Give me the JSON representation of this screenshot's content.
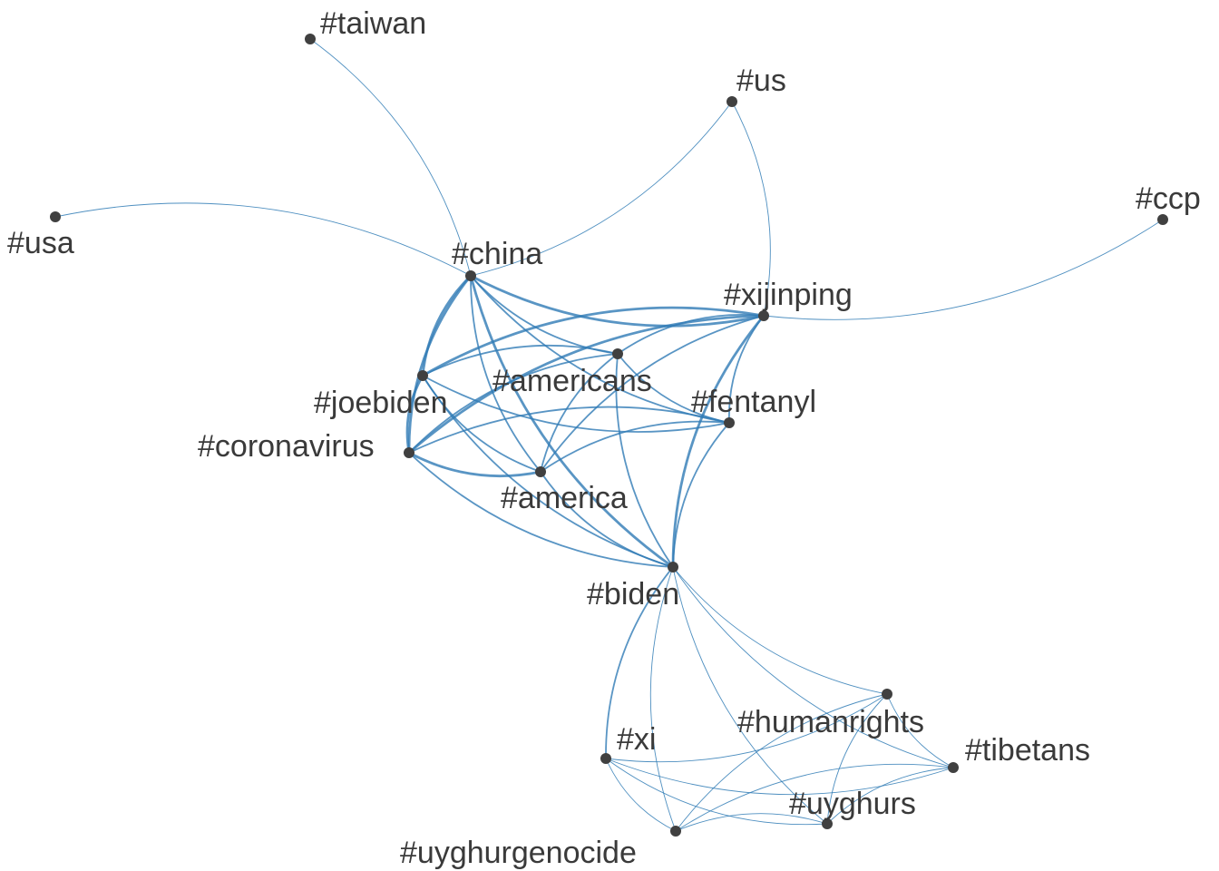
{
  "graph": {
    "type": "network",
    "edge_color": "#2f7bb5",
    "node_color": "#404040",
    "label_color": "#3a3a3a",
    "nodes": [
      {
        "id": "taiwan",
        "label": "#taiwan"
      },
      {
        "id": "us",
        "label": "#us"
      },
      {
        "id": "usa",
        "label": "#usa"
      },
      {
        "id": "ccp",
        "label": "#ccp"
      },
      {
        "id": "china",
        "label": "#china"
      },
      {
        "id": "xijinping",
        "label": "#xijinping"
      },
      {
        "id": "americans",
        "label": "#americans"
      },
      {
        "id": "joebiden",
        "label": "#joebiden"
      },
      {
        "id": "fentanyl",
        "label": "#fentanyl"
      },
      {
        "id": "coronavirus",
        "label": "#coronavirus"
      },
      {
        "id": "america",
        "label": "#america"
      },
      {
        "id": "biden",
        "label": "#biden"
      },
      {
        "id": "humanrights",
        "label": "#humanrights"
      },
      {
        "id": "xi",
        "label": "#xi"
      },
      {
        "id": "tibetans",
        "label": "#tibetans"
      },
      {
        "id": "uyghurs",
        "label": "#uyghurs"
      },
      {
        "id": "uyghurgenocide",
        "label": "#uyghurgenocide"
      }
    ],
    "edges": [
      {
        "source": "china",
        "target": "taiwan",
        "weight": 1
      },
      {
        "source": "china",
        "target": "usa",
        "weight": 1
      },
      {
        "source": "china",
        "target": "us",
        "weight": 1
      },
      {
        "source": "xijinping",
        "target": "us",
        "weight": 1
      },
      {
        "source": "xijinping",
        "target": "ccp",
        "weight": 1
      },
      {
        "source": "china",
        "target": "xijinping",
        "weight": 3
      },
      {
        "source": "china",
        "target": "americans",
        "weight": 2
      },
      {
        "source": "china",
        "target": "joebiden",
        "weight": 3
      },
      {
        "source": "china",
        "target": "fentanyl",
        "weight": 2
      },
      {
        "source": "china",
        "target": "coronavirus",
        "weight": 3
      },
      {
        "source": "china",
        "target": "america",
        "weight": 2
      },
      {
        "source": "china",
        "target": "biden",
        "weight": 3
      },
      {
        "source": "xijinping",
        "target": "americans",
        "weight": 2
      },
      {
        "source": "xijinping",
        "target": "joebiden",
        "weight": 3
      },
      {
        "source": "xijinping",
        "target": "fentanyl",
        "weight": 2
      },
      {
        "source": "xijinping",
        "target": "coronavirus",
        "weight": 3
      },
      {
        "source": "xijinping",
        "target": "america",
        "weight": 2
      },
      {
        "source": "xijinping",
        "target": "biden",
        "weight": 3
      },
      {
        "source": "americans",
        "target": "joebiden",
        "weight": 2
      },
      {
        "source": "americans",
        "target": "fentanyl",
        "weight": 2
      },
      {
        "source": "americans",
        "target": "coronavirus",
        "weight": 2
      },
      {
        "source": "americans",
        "target": "america",
        "weight": 2
      },
      {
        "source": "americans",
        "target": "biden",
        "weight": 2
      },
      {
        "source": "joebiden",
        "target": "fentanyl",
        "weight": 2
      },
      {
        "source": "joebiden",
        "target": "coronavirus",
        "weight": 3
      },
      {
        "source": "joebiden",
        "target": "america",
        "weight": 2
      },
      {
        "source": "joebiden",
        "target": "biden",
        "weight": 2
      },
      {
        "source": "fentanyl",
        "target": "coronavirus",
        "weight": 2
      },
      {
        "source": "fentanyl",
        "target": "america",
        "weight": 2
      },
      {
        "source": "fentanyl",
        "target": "biden",
        "weight": 2
      },
      {
        "source": "coronavirus",
        "target": "america",
        "weight": 3
      },
      {
        "source": "coronavirus",
        "target": "biden",
        "weight": 2
      },
      {
        "source": "america",
        "target": "biden",
        "weight": 2
      },
      {
        "source": "biden",
        "target": "xi",
        "weight": 2
      },
      {
        "source": "biden",
        "target": "humanrights",
        "weight": 1
      },
      {
        "source": "biden",
        "target": "tibetans",
        "weight": 1
      },
      {
        "source": "biden",
        "target": "uyghurs",
        "weight": 1
      },
      {
        "source": "biden",
        "target": "uyghurgenocide",
        "weight": 1
      },
      {
        "source": "xi",
        "target": "humanrights",
        "weight": 1
      },
      {
        "source": "xi",
        "target": "tibetans",
        "weight": 1
      },
      {
        "source": "xi",
        "target": "uyghurs",
        "weight": 1
      },
      {
        "source": "xi",
        "target": "uyghurgenocide",
        "weight": 1
      },
      {
        "source": "humanrights",
        "target": "tibetans",
        "weight": 1
      },
      {
        "source": "humanrights",
        "target": "uyghurs",
        "weight": 1
      },
      {
        "source": "humanrights",
        "target": "uyghurgenocide",
        "weight": 1
      },
      {
        "source": "tibetans",
        "target": "uyghurs",
        "weight": 1
      },
      {
        "source": "tibetans",
        "target": "uyghurgenocide",
        "weight": 1
      },
      {
        "source": "uyghurs",
        "target": "uyghurgenocide",
        "weight": 1
      }
    ]
  }
}
